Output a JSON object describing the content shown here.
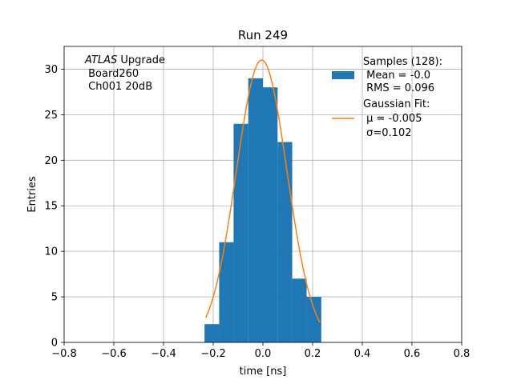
{
  "chart_data": {
    "type": "bar",
    "title": "Run 249",
    "xlabel": "time [ns]",
    "ylabel": "Entries",
    "xlim": [
      -0.8,
      0.8
    ],
    "ylim": [
      0,
      32.5
    ],
    "grid": true,
    "x_ticks": [
      -0.8,
      -0.6,
      -0.4,
      -0.2,
      0.0,
      0.2,
      0.4,
      0.6,
      0.8
    ],
    "x_tick_labels": [
      "−0.8",
      "−0.6",
      "−0.4",
      "−0.2",
      "0.0",
      "0.2",
      "0.4",
      "0.6",
      "0.8"
    ],
    "y_ticks": [
      0,
      5,
      10,
      15,
      20,
      25,
      30
    ],
    "y_tick_labels": [
      "0",
      "5",
      "10",
      "15",
      "20",
      "25",
      "30"
    ],
    "histogram": {
      "name": "Samples (128)",
      "color": "#1f77b4",
      "bin_edges": [
        -0.235,
        -0.176,
        -0.118,
        -0.059,
        0.0,
        0.059,
        0.118,
        0.176,
        0.235
      ],
      "counts": [
        2,
        11,
        24,
        29,
        28,
        22,
        7,
        5
      ]
    },
    "fit": {
      "name": "Gaussian Fit",
      "color": "#ff7f0e",
      "mu": -0.005,
      "sigma": 0.102,
      "amplitude": 31.0,
      "x_range": [
        -0.23,
        0.23
      ]
    },
    "legend": {
      "location": "top-right",
      "entries": [
        {
          "kind": "patch",
          "lines": [
            "Samples (128):",
            " Mean = -0.0",
            " RMS = 0.096"
          ]
        },
        {
          "kind": "line",
          "lines": [
            "Gaussian Fit:",
            " μ = -0.005",
            " σ=0.102"
          ]
        }
      ]
    },
    "annotation": {
      "location": "top-left",
      "italic": "ATLAS",
      "rest": " Upgrade",
      "lines": [
        " Board260",
        " Ch001 20dB"
      ]
    }
  }
}
